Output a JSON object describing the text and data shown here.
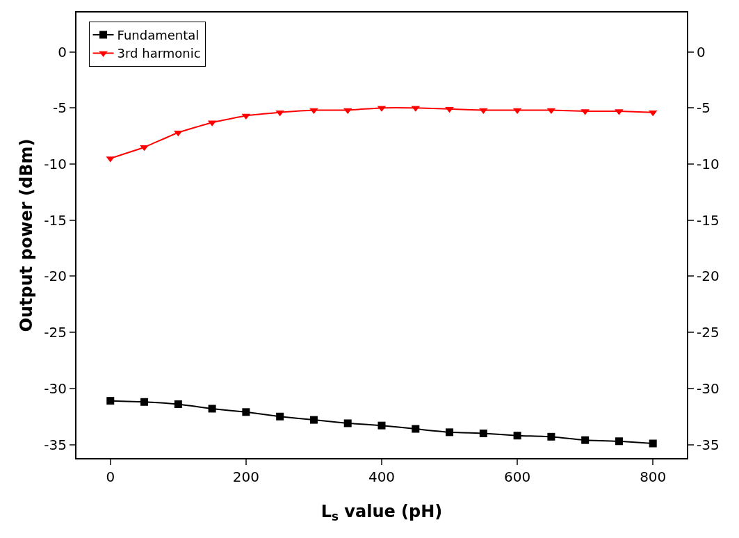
{
  "chart_data": {
    "type": "line",
    "xlabel": "L$_{s}$ value (pH)",
    "ylabel": "Output power (dBm)",
    "x": [
      0,
      50,
      100,
      150,
      200,
      250,
      300,
      350,
      400,
      450,
      500,
      550,
      600,
      650,
      700,
      750,
      800
    ],
    "series": [
      {
        "name": "Fundamental",
        "color": "#000000",
        "marker": "square",
        "values": [
          -31.1,
          -31.2,
          -31.4,
          -31.8,
          -32.1,
          -32.5,
          -32.8,
          -33.1,
          -33.3,
          -33.6,
          -33.9,
          -34.0,
          -34.2,
          -34.3,
          -34.6,
          -34.7,
          -34.9
        ]
      },
      {
        "name": "3rd harmonic",
        "color": "#ff0000",
        "marker": "triangle",
        "values": [
          -9.5,
          -8.5,
          -7.2,
          -6.3,
          -5.7,
          -5.4,
          -5.2,
          -5.2,
          -5.0,
          -5.0,
          -5.1,
          -5.2,
          -5.2,
          -5.2,
          -5.3,
          -5.3,
          -5.4
        ]
      }
    ],
    "xlim": [
      -50,
      850
    ],
    "xticks": [
      0,
      200,
      400,
      600,
      800
    ],
    "ylim": [
      -36.2,
      3.5
    ],
    "yticks": [
      0,
      -5,
      -10,
      -15,
      -20,
      -25,
      -30,
      -35
    ],
    "y2lim": [
      -36.2,
      3.5
    ],
    "y2ticks": [
      0,
      -5,
      -10,
      -15,
      -20,
      -25,
      -30,
      -35
    ],
    "legend": "top left",
    "line_style": "solid"
  }
}
